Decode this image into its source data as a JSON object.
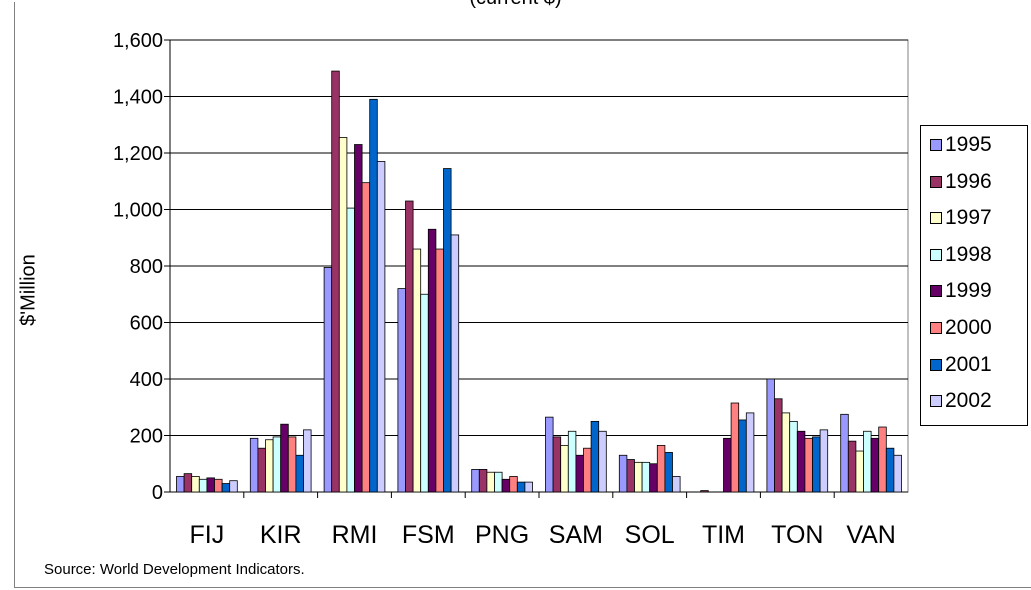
{
  "chart_data": {
    "type": "bar",
    "title": "(current $)",
    "source": "Source: World Development Indicators.",
    "ylabel": "$'Million",
    "xlabel": "",
    "ylim": [
      0,
      1600
    ],
    "yticks": [
      "0",
      "200",
      "400",
      "600",
      "800",
      "1,000",
      "1,200",
      "1,400",
      "1,600"
    ],
    "grid": true,
    "legend_position": "right",
    "categories": [
      "FIJ",
      "KIR",
      "RMI",
      "FSM",
      "PNG",
      "SAM",
      "SOL",
      "TIM",
      "TON",
      "VAN"
    ],
    "series": [
      {
        "name": "1995",
        "color": "#9999ff",
        "values": [
          55,
          190,
          795,
          720,
          80,
          265,
          130,
          0,
          400,
          275
        ]
      },
      {
        "name": "1996",
        "color": "#993366",
        "values": [
          65,
          155,
          1490,
          1030,
          80,
          195,
          115,
          5,
          330,
          180
        ]
      },
      {
        "name": "1997",
        "color": "#ffffcc",
        "values": [
          55,
          185,
          1255,
          860,
          70,
          165,
          105,
          0,
          280,
          145
        ]
      },
      {
        "name": "1998",
        "color": "#ccffff",
        "values": [
          45,
          195,
          1005,
          700,
          70,
          215,
          105,
          0,
          250,
          215
        ]
      },
      {
        "name": "1999",
        "color": "#660066",
        "values": [
          50,
          240,
          1230,
          930,
          45,
          130,
          100,
          190,
          215,
          190
        ]
      },
      {
        "name": "2000",
        "color": "#ff8080",
        "values": [
          45,
          195,
          1095,
          860,
          55,
          155,
          165,
          315,
          190,
          230
        ]
      },
      {
        "name": "2001",
        "color": "#0066cc",
        "values": [
          30,
          130,
          1390,
          1145,
          35,
          250,
          140,
          255,
          195,
          155
        ]
      },
      {
        "name": "2002",
        "color": "#ccccff",
        "values": [
          40,
          220,
          1170,
          910,
          35,
          215,
          55,
          280,
          220,
          130
        ]
      }
    ]
  }
}
